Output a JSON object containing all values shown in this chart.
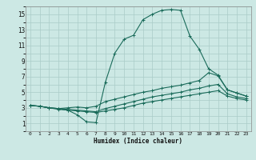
{
  "xlabel": "Humidex (Indice chaleur)",
  "bg_color": "#cce8e4",
  "grid_color": "#aaccc8",
  "line_color": "#1a6b5a",
  "xlim": [
    -0.5,
    23.5
  ],
  "ylim": [
    0,
    16
  ],
  "xtick_labels": [
    "0",
    "1",
    "2",
    "3",
    "4",
    "5",
    "6",
    "7",
    "8",
    "9",
    "10",
    "11",
    "12",
    "13",
    "14",
    "15",
    "16",
    "17",
    "18",
    "19",
    "20",
    "21",
    "22",
    "23"
  ],
  "ytick_labels": [
    "1",
    "3",
    "5",
    "7",
    "9",
    "11",
    "13",
    "15"
  ],
  "line1": {
    "x": [
      0,
      1,
      2,
      3,
      4,
      5,
      6,
      7,
      8,
      9,
      10,
      11,
      12,
      13,
      14,
      15,
      16,
      17,
      18,
      19,
      20,
      21,
      22,
      23
    ],
    "y": [
      3.3,
      3.2,
      3.0,
      2.9,
      2.7,
      2.1,
      1.2,
      1.1,
      6.3,
      10.0,
      11.8,
      12.3,
      14.3,
      15.0,
      15.5,
      15.6,
      15.5,
      12.2,
      10.5,
      8.0,
      7.2,
      5.3,
      4.9,
      4.5
    ]
  },
  "line2": {
    "x": [
      0,
      1,
      2,
      3,
      4,
      5,
      6,
      7,
      8,
      9,
      10,
      11,
      12,
      13,
      14,
      15,
      16,
      17,
      18,
      19,
      20,
      21,
      22,
      23
    ],
    "y": [
      3.3,
      3.2,
      3.0,
      2.9,
      3.0,
      3.1,
      3.0,
      3.2,
      3.8,
      4.1,
      4.4,
      4.7,
      5.0,
      5.2,
      5.5,
      5.7,
      5.9,
      6.2,
      6.5,
      7.5,
      7.1,
      5.3,
      4.9,
      4.5
    ]
  },
  "line3": {
    "x": [
      0,
      1,
      2,
      3,
      4,
      5,
      6,
      7,
      8,
      9,
      10,
      11,
      12,
      13,
      14,
      15,
      16,
      17,
      18,
      19,
      20,
      21,
      22,
      23
    ],
    "y": [
      3.3,
      3.2,
      3.0,
      2.9,
      2.8,
      2.7,
      2.6,
      2.5,
      2.9,
      3.2,
      3.5,
      3.8,
      4.1,
      4.4,
      4.6,
      4.8,
      5.0,
      5.3,
      5.5,
      5.8,
      6.0,
      4.8,
      4.4,
      4.2
    ]
  },
  "line4": {
    "x": [
      0,
      1,
      2,
      3,
      4,
      5,
      6,
      7,
      8,
      9,
      10,
      11,
      12,
      13,
      14,
      15,
      16,
      17,
      18,
      19,
      20,
      21,
      22,
      23
    ],
    "y": [
      3.3,
      3.2,
      3.0,
      2.8,
      2.7,
      2.6,
      2.5,
      2.4,
      2.6,
      2.8,
      3.0,
      3.3,
      3.6,
      3.8,
      4.0,
      4.2,
      4.4,
      4.6,
      4.8,
      5.0,
      5.2,
      4.5,
      4.2,
      4.0
    ]
  }
}
